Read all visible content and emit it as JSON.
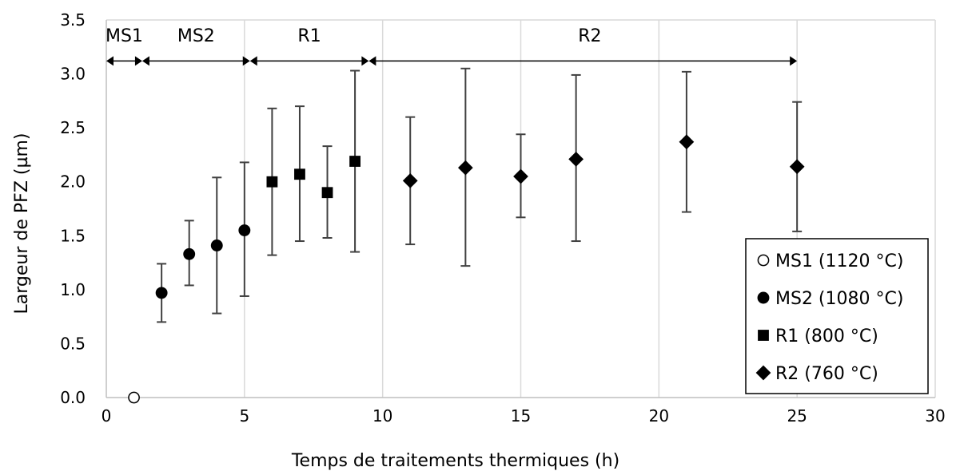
{
  "chart_data": {
    "type": "scatter",
    "xlabel": "Temps de traitements thermiques (h)",
    "ylabel": "Largeur de PFZ (µm)",
    "xlim": [
      0,
      30
    ],
    "ylim": [
      0,
      3.5
    ],
    "x_ticks": [
      0,
      5,
      10,
      15,
      20,
      25,
      30
    ],
    "y_ticks": [
      "0.0",
      "0.5",
      "1.0",
      "1.5",
      "2.0",
      "2.5",
      "3.0",
      "3.5"
    ],
    "grid": "vertical",
    "legend_position": "bottom-right",
    "series": [
      {
        "name": "MS1 (1120 °C)",
        "marker": "circle-open",
        "points": [
          {
            "x": 1,
            "y": 0.0
          }
        ]
      },
      {
        "name": "MS2 (1080 °C)",
        "marker": "circle",
        "points": [
          {
            "x": 2,
            "y": 0.97,
            "low": 0.7,
            "high": 1.24
          },
          {
            "x": 3,
            "y": 1.33,
            "low": 1.04,
            "high": 1.64
          },
          {
            "x": 4,
            "y": 1.41,
            "low": 0.78,
            "high": 2.04
          },
          {
            "x": 5,
            "y": 1.55,
            "low": 0.94,
            "high": 2.18
          }
        ]
      },
      {
        "name": "R1 (800 °C)",
        "marker": "square",
        "points": [
          {
            "x": 6,
            "y": 2.0,
            "low": 1.32,
            "high": 2.68
          },
          {
            "x": 7,
            "y": 2.07,
            "low": 1.45,
            "high": 2.7
          },
          {
            "x": 8,
            "y": 1.9,
            "low": 1.48,
            "high": 2.33
          },
          {
            "x": 9,
            "y": 2.19,
            "low": 1.35,
            "high": 3.03
          }
        ]
      },
      {
        "name": "R2 (760 °C)",
        "marker": "diamond",
        "points": [
          {
            "x": 11,
            "y": 2.01,
            "low": 1.42,
            "high": 2.6
          },
          {
            "x": 13,
            "y": 2.13,
            "low": 1.22,
            "high": 3.05
          },
          {
            "x": 15,
            "y": 2.05,
            "low": 1.67,
            "high": 2.44
          },
          {
            "x": 17,
            "y": 2.21,
            "low": 1.45,
            "high": 2.99
          },
          {
            "x": 21,
            "y": 2.37,
            "low": 1.72,
            "high": 3.02
          },
          {
            "x": 25,
            "y": 2.14,
            "low": 1.54,
            "high": 2.74
          }
        ]
      }
    ],
    "regions": [
      {
        "label": "MS1",
        "start": 0,
        "end": 1.3
      },
      {
        "label": "MS2",
        "start": 1.3,
        "end": 5.2
      },
      {
        "label": "R1",
        "start": 5.2,
        "end": 9.5
      },
      {
        "label": "R2",
        "start": 9.5,
        "end": 25
      }
    ]
  }
}
